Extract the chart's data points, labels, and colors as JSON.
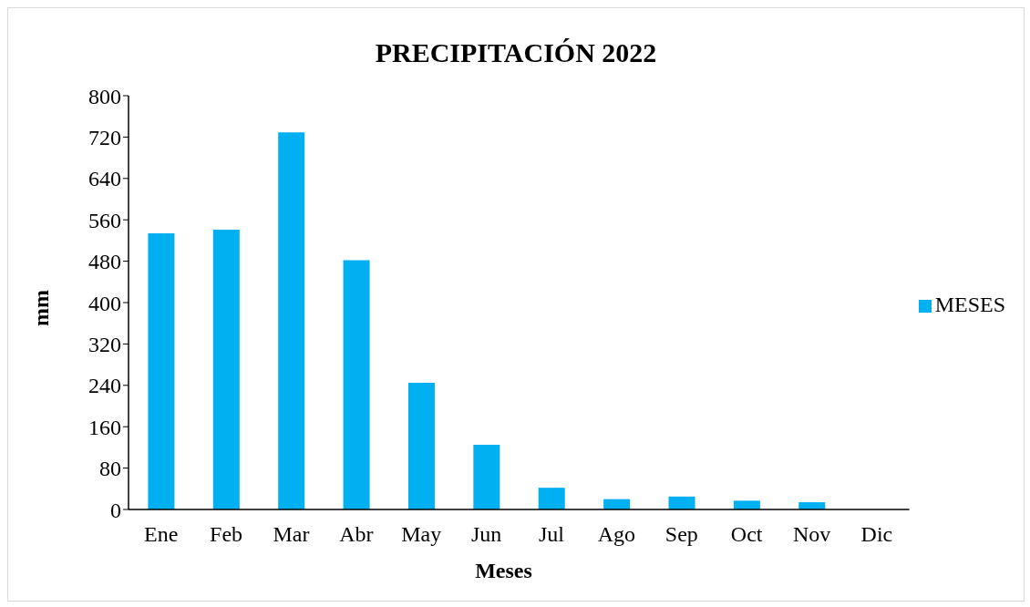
{
  "chart_data": {
    "type": "bar",
    "title": "PRECIPITACIÓN 2022",
    "xlabel": "Meses",
    "ylabel": "mm",
    "categories": [
      "Ene",
      "Feb",
      "Mar",
      "Abr",
      "May",
      "Jun",
      "Jul",
      "Ago",
      "Sep",
      "Oct",
      "Nov",
      "Dic"
    ],
    "series": [
      {
        "name": "MESES",
        "color": "#00b0f0",
        "values": [
          534,
          541,
          729,
          482,
          245,
          125,
          42,
          20,
          25,
          17,
          14,
          0
        ]
      }
    ],
    "ylim": [
      0,
      800
    ],
    "yticks": [
      0,
      80,
      160,
      240,
      320,
      400,
      480,
      560,
      640,
      720,
      800
    ],
    "grid": false,
    "legend": "right"
  }
}
